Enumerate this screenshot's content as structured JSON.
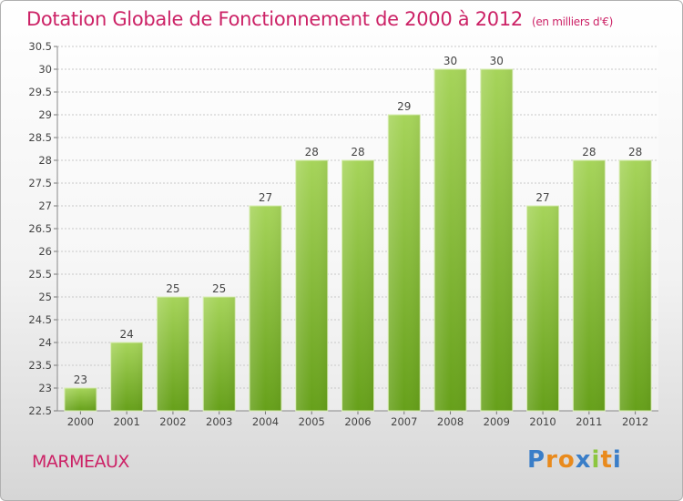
{
  "header": {
    "title": "Dotation Globale de Fonctionnement de 2000 à 2012",
    "subtitle": "(en milliers d'€)"
  },
  "footer": {
    "commune": "MARMEAUX",
    "logo": "Proxiti"
  },
  "colors": {
    "title": "#cc2266",
    "bar_light": "#a6d45a",
    "bar_dark": "#66a01a"
  },
  "chart_data": {
    "type": "bar",
    "categories": [
      "2000",
      "2001",
      "2002",
      "2003",
      "2004",
      "2005",
      "2006",
      "2007",
      "2008",
      "2009",
      "2010",
      "2011",
      "2012"
    ],
    "values": [
      23,
      24,
      25,
      25,
      27,
      28,
      28,
      29,
      30,
      30,
      27,
      28,
      28
    ],
    "data_labels": [
      "23",
      "24",
      "25",
      "25",
      "27",
      "28",
      "28",
      "29",
      "30",
      "30",
      "27",
      "28",
      "28"
    ],
    "title": "Dotation Globale de Fonctionnement de 2000 à 2012",
    "subtitle": "(en milliers d'€)",
    "xlabel": "",
    "ylabel": "",
    "ylim": [
      22.5,
      30.5
    ],
    "yticks": [
      "22.5",
      "23",
      "23.5",
      "24",
      "24.5",
      "25",
      "25.5",
      "26",
      "26.5",
      "27",
      "27.5",
      "28",
      "28.5",
      "29",
      "29.5",
      "30",
      "30.5"
    ],
    "grid": "horizontal"
  }
}
